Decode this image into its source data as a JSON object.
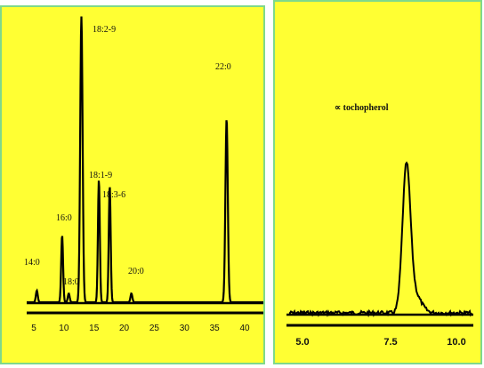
{
  "chart_data": [
    {
      "type": "line",
      "title": "",
      "xlabel": "",
      "ylabel": "",
      "xlim": [
        4,
        45
      ],
      "ylim": [
        0,
        100
      ],
      "xticks": [
        5,
        10,
        15,
        20,
        25,
        30,
        35,
        40
      ],
      "grid": false,
      "legend": "none",
      "peaks": [
        {
          "label": "14:0",
          "x": 5.5,
          "height": 4
        },
        {
          "label": "16:0",
          "x": 9.7,
          "height": 23
        },
        {
          "label": "18:0",
          "x": 10.8,
          "height": 3
        },
        {
          "label": "18:2-9",
          "x": 12.9,
          "height": 98
        },
        {
          "label": "18:1-9",
          "x": 15.8,
          "height": 42
        },
        {
          "label": "18:3-6",
          "x": 17.6,
          "height": 40
        },
        {
          "label": "20:0",
          "x": 21.2,
          "height": 3
        },
        {
          "label": "22:0",
          "x": 37.0,
          "height": 63
        }
      ]
    },
    {
      "type": "line",
      "title": "",
      "xlabel": "",
      "ylabel": "",
      "xlim": [
        4.7,
        10.5
      ],
      "ylim": [
        0,
        100
      ],
      "xticks": [
        "5.0",
        "7.5",
        "10.0"
      ],
      "grid": false,
      "legend": "none",
      "peaks": [
        {
          "label": "∝ tochopherol",
          "x": 7.95,
          "height": 100
        }
      ]
    }
  ]
}
